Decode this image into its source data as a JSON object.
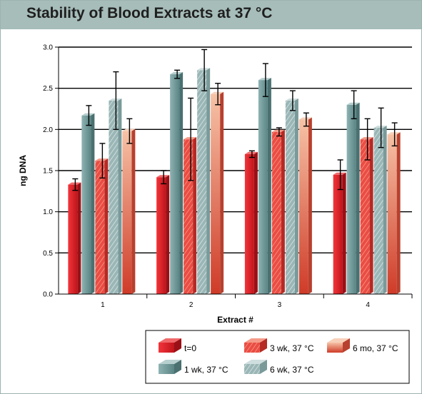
{
  "header": {
    "title": "Stability of Blood Extracts at 37 °C"
  },
  "chart_data": {
    "type": "bar",
    "title": "Stability of Blood Extracts at 37 °C",
    "xlabel": "Extract #",
    "ylabel": "ng DNA",
    "categories": [
      "1",
      "2",
      "3",
      "4"
    ],
    "ylim": [
      0,
      3.0
    ],
    "yticks": [
      "0.0",
      "0.5",
      "1.0",
      "1.5",
      "2.0",
      "2.5",
      "3.0"
    ],
    "grid": true,
    "legend_position": "bottom",
    "series": [
      {
        "name": "t=0",
        "values": [
          1.33,
          1.42,
          1.7,
          1.45
        ],
        "err": [
          0.07,
          0.08,
          0.04,
          0.18
        ],
        "color": "#e0242c",
        "pattern": "solid"
      },
      {
        "name": "1 wk, 37 °C",
        "values": [
          2.17,
          2.67,
          2.6,
          2.3
        ],
        "err": [
          0.12,
          0.05,
          0.2,
          0.17
        ],
        "color": "#6f9a9a",
        "pattern": "solid"
      },
      {
        "name": "3 wk, 37 °C",
        "values": [
          1.62,
          1.88,
          1.97,
          1.88
        ],
        "err": [
          0.21,
          0.5,
          0.05,
          0.25
        ],
        "color": "#e5403f",
        "pattern": "hatched"
      },
      {
        "name": "6 wk, 37 °C",
        "values": [
          2.35,
          2.72,
          2.35,
          2.02
        ],
        "err": [
          0.35,
          0.25,
          0.12,
          0.24
        ],
        "color": "#98b5b5",
        "pattern": "hatched"
      },
      {
        "name": "6 mo, 37 °C",
        "values": [
          1.98,
          2.43,
          2.12,
          1.94
        ],
        "err": [
          0.15,
          0.13,
          0.08,
          0.14
        ],
        "color": "#e06050",
        "pattern": "gradient"
      }
    ]
  }
}
